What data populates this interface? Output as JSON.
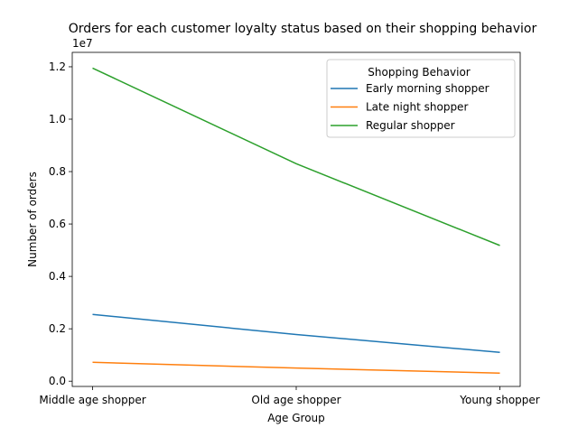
{
  "chart_data": {
    "type": "line",
    "title": "Orders for each customer loyalty status based on their shopping behavior",
    "xlabel": "Age Group",
    "ylabel": "Number of orders",
    "y_offset_label": "1e7",
    "categories": [
      "Middle age shopper",
      "Old age shopper",
      "Young shopper"
    ],
    "series": [
      {
        "name": "Early morning shopper",
        "color": "#1f77b4",
        "values": [
          2550000,
          1780000,
          1100000
        ]
      },
      {
        "name": "Late night shopper",
        "color": "#ff7f0e",
        "values": [
          720000,
          500000,
          310000
        ]
      },
      {
        "name": "Regular shopper",
        "color": "#2ca02c",
        "values": [
          11950000,
          8300000,
          5180000
        ]
      }
    ],
    "ylim": [
      -200000,
      12550000
    ],
    "yticks": [
      0,
      2000000,
      4000000,
      6000000,
      8000000,
      10000000,
      12000000
    ],
    "ytick_labels": [
      "0.0",
      "0.2",
      "0.4",
      "0.6",
      "0.8",
      "1.0",
      "1.2"
    ],
    "grid": false,
    "legend": {
      "title": "Shopping Behavior",
      "placement": "top-right"
    }
  }
}
